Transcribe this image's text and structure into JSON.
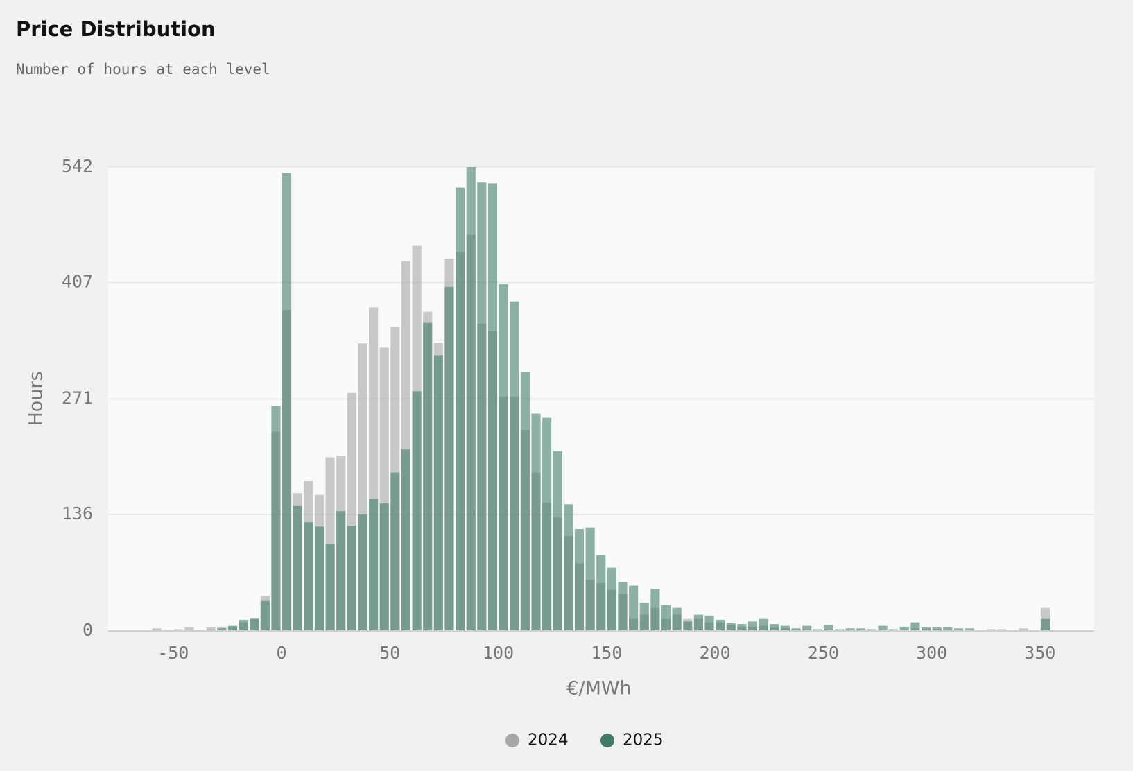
{
  "chart_data": {
    "type": "histogram",
    "title": "Price Distribution",
    "subtitle": "Number of hours at each level",
    "x_label": "€/MWh",
    "y_label": "Hours",
    "bins": [
      -60,
      -55,
      -50,
      -45,
      -40,
      -35,
      -30,
      -25,
      -20,
      -15,
      -10,
      -5,
      0,
      5,
      10,
      15,
      20,
      25,
      30,
      35,
      40,
      45,
      50,
      55,
      60,
      65,
      70,
      75,
      80,
      85,
      90,
      95,
      100,
      105,
      110,
      115,
      120,
      125,
      130,
      135,
      140,
      145,
      150,
      155,
      160,
      165,
      170,
      175,
      180,
      185,
      190,
      195,
      200,
      205,
      210,
      215,
      220,
      225,
      230,
      235,
      240,
      245,
      250,
      255,
      260,
      265,
      270,
      275,
      280,
      285,
      290,
      295,
      300,
      305,
      310,
      315,
      320,
      325,
      330,
      335,
      340,
      345,
      350,
      355
    ],
    "series": [
      {
        "name": "2024",
        "color": "#a6a6a6",
        "values": [
          3,
          1,
          2,
          4,
          1,
          4,
          5,
          5,
          10,
          15,
          41,
          233,
          375,
          161,
          175,
          159,
          203,
          205,
          278,
          336,
          378,
          331,
          355,
          432,
          450,
          373,
          337,
          435,
          443,
          463,
          359,
          350,
          274,
          274,
          235,
          185,
          150,
          133,
          111,
          79,
          60,
          56,
          48,
          43,
          14,
          19,
          27,
          14,
          19,
          14,
          14,
          10,
          10,
          7,
          5,
          5,
          6,
          4,
          3,
          2,
          2,
          1,
          2,
          1,
          1,
          1,
          1,
          1,
          1,
          2,
          3,
          2,
          2,
          1,
          1,
          0,
          0,
          2,
          2,
          0,
          3,
          0,
          27
        ]
      },
      {
        "name": "2025",
        "color": "#3e7a65",
        "values": [
          0,
          0,
          0,
          0,
          0,
          1,
          3,
          6,
          13,
          14,
          35,
          263,
          535,
          146,
          127,
          122,
          102,
          140,
          123,
          136,
          154,
          149,
          185,
          212,
          280,
          360,
          322,
          402,
          518,
          542,
          524,
          523,
          405,
          385,
          303,
          254,
          249,
          210,
          148,
          119,
          121,
          89,
          74,
          57,
          53,
          33,
          49,
          30,
          27,
          11,
          19,
          18,
          13,
          9,
          8,
          11,
          14,
          8,
          6,
          3,
          6,
          2,
          7,
          2,
          3,
          3,
          2,
          6,
          2,
          5,
          10,
          4,
          4,
          4,
          3,
          3,
          0,
          0,
          0,
          0,
          0,
          0,
          14
        ]
      }
    ],
    "xlim": [
      -80,
      375
    ],
    "xticks": [
      -50,
      0,
      50,
      100,
      150,
      200,
      250,
      300,
      350
    ],
    "ylim": [
      0,
      542
    ],
    "yticks": [
      0,
      136,
      271,
      407,
      542
    ],
    "grid": true,
    "legend": "bottom"
  }
}
